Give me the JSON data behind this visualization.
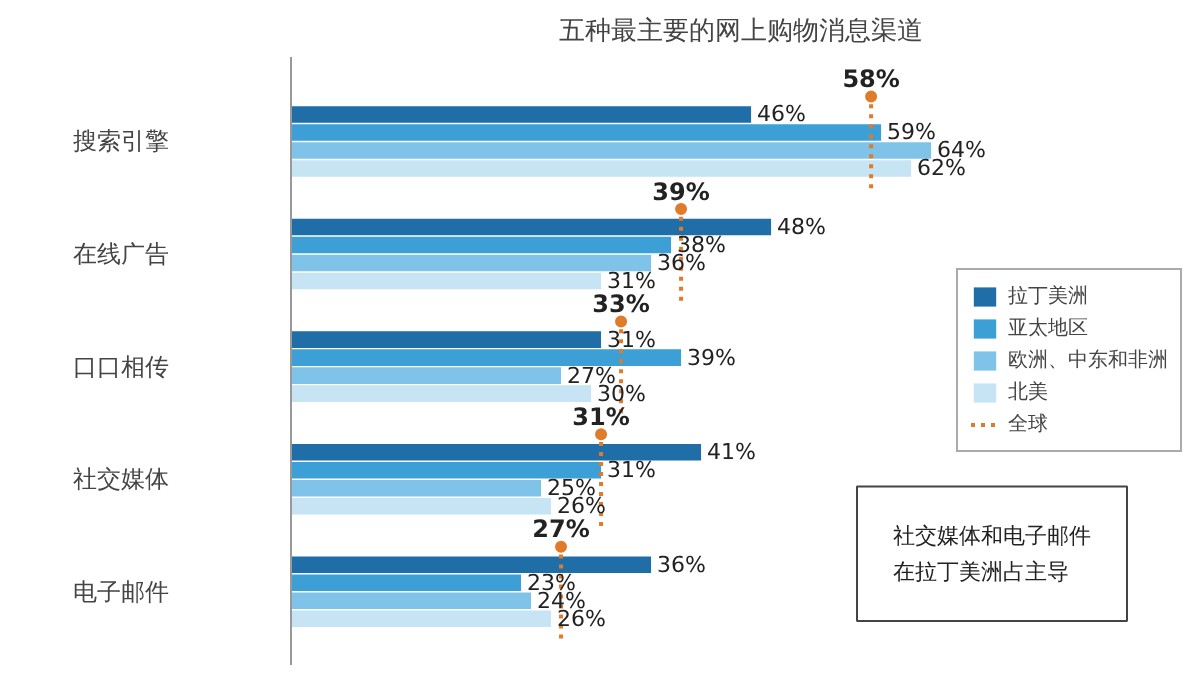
{
  "chart_data": {
    "type": "bar",
    "orientation": "horizontal",
    "title": "五种最主要的网上购物消息渠道",
    "categories": [
      "搜索引擎",
      "在线广告",
      "口口相传",
      "社交媒体",
      "电子邮件"
    ],
    "series": [
      {
        "name": "拉丁美洲",
        "color": "#1f6ea8",
        "values": [
          46,
          48,
          31,
          41,
          36
        ],
        "value_labels": [
          "46%",
          "48%",
          "31%",
          "41%",
          "36%"
        ]
      },
      {
        "name": "亚太地区",
        "color": "#3c9fd5",
        "values": [
          59,
          38,
          39,
          31,
          23
        ],
        "value_labels": [
          "59%",
          "38%",
          "39%",
          "31%",
          "23%"
        ]
      },
      {
        "name": "欧洲、中东和非洲",
        "color": "#7fc3e8",
        "values": [
          64,
          36,
          27,
          25,
          24
        ],
        "value_labels": [
          "64%",
          "36%",
          "27%",
          "25%",
          "24%"
        ]
      },
      {
        "name": "北美",
        "color": "#c6e4f4",
        "values": [
          62,
          31,
          30,
          26,
          26
        ],
        "value_labels": [
          "62%",
          "31%",
          "30%",
          "26%",
          "26%"
        ]
      },
      {
        "name": "全球",
        "type": "scatter",
        "line_style": "dotted",
        "color": "#e07b2a",
        "values": [
          58,
          39,
          33,
          31,
          27
        ],
        "value_labels": [
          "58%",
          "39%",
          "33%",
          "31%",
          "27%"
        ]
      }
    ],
    "tick_labels": "y",
    "grid": false,
    "legend": "right",
    "annotations": [
      "社交媒体和电子邮件在拉丁美洲占主导"
    ]
  }
}
